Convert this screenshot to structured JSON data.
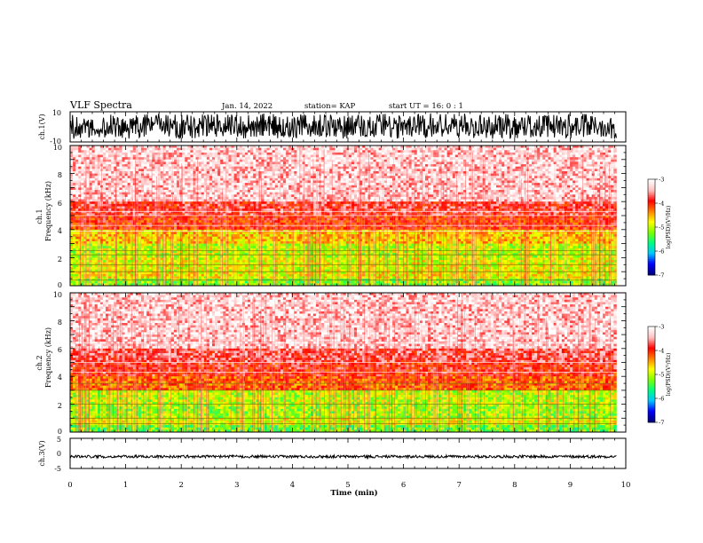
{
  "header": {
    "title": "VLF Spectra",
    "date": "Jan. 14, 2022",
    "station": "station= KAP",
    "start": "start  UT =   16: 0  : 1"
  },
  "chart_data": [
    {
      "type": "line",
      "name": "ch1-waveform",
      "ylabel": "ch.1(V)",
      "ylim": [
        -10,
        10
      ],
      "xlim": [
        0,
        10
      ],
      "yticks": [
        "10",
        "-10"
      ],
      "x": [
        0.0,
        0.5,
        1.0,
        1.5,
        2.0,
        2.5,
        3.0,
        3.5,
        4.0,
        4.5,
        5.0,
        5.5,
        6.0,
        6.5,
        7.0,
        7.5,
        8.0,
        8.5,
        9.0,
        9.5,
        9.83
      ],
      "envelope_low": [
        -8,
        -7,
        -8,
        -6,
        -8,
        -7,
        -8,
        -7,
        -8,
        -7,
        -8,
        -7,
        -8,
        -8,
        -7,
        -8,
        -8,
        -7,
        -8,
        -7,
        -8
      ],
      "envelope_high": [
        8,
        9,
        7,
        9,
        8,
        9,
        8,
        9,
        8,
        9,
        8,
        9,
        8,
        9,
        9,
        8,
        9,
        8,
        9,
        8,
        9
      ]
    },
    {
      "type": "heatmap",
      "name": "ch1-spectrogram",
      "ylabel": "ch.1",
      "ylabel2": "Frequency (kHz)",
      "ylim": [
        0,
        10
      ],
      "xlim": [
        0,
        9.83
      ],
      "yticks": [
        "0",
        "2",
        "4",
        "6",
        "8",
        "10"
      ],
      "freq_bands_khz": [
        0,
        0.5,
        1,
        2,
        3,
        4,
        5,
        6,
        10
      ],
      "log_psd_by_band": [
        -5.2,
        -4.8,
        -4.9,
        -5.0,
        -4.6,
        -4.0,
        -3.8,
        -3.3
      ],
      "lines_khz": [
        0.4,
        1.0,
        1.5,
        2.2,
        2.5,
        3.9,
        4.3,
        5.0,
        5.3
      ]
    },
    {
      "type": "heatmap",
      "name": "ch2-spectrogram",
      "ylabel": "ch.2",
      "ylabel2": "Frequency (kHz)",
      "ylim": [
        0,
        10
      ],
      "xlim": [
        0,
        9.83
      ],
      "yticks": [
        "0",
        "2",
        "4",
        "6",
        "8",
        "10"
      ],
      "freq_bands_khz": [
        0,
        0.5,
        1,
        2,
        3,
        4,
        5,
        6,
        10
      ],
      "log_psd_by_band": [
        -5.3,
        -4.9,
        -5.1,
        -5.0,
        -4.2,
        -3.9,
        -3.7,
        -3.3
      ],
      "lines_khz": [
        0.6,
        1.0,
        2.0,
        3.0,
        3.5,
        4.3,
        5.0,
        6.4
      ]
    },
    {
      "type": "line",
      "name": "ch3-waveform",
      "ylabel": "ch.3(V)",
      "ylim": [
        -5,
        5
      ],
      "xlim": [
        0,
        10
      ],
      "yticks": [
        "5",
        "0",
        "-5"
      ],
      "x": [
        0,
        9.83
      ],
      "envelope_low": [
        -1.5,
        -1.5
      ],
      "envelope_high": [
        -0.6,
        -0.6
      ]
    }
  ],
  "xaxis": {
    "label": "Time (min)",
    "ticks": [
      "0",
      "1",
      "2",
      "3",
      "4",
      "5",
      "6",
      "7",
      "8",
      "9",
      "10"
    ],
    "range": [
      0,
      10
    ]
  },
  "colorbars": [
    {
      "label": "log(PSD)(V²/Hz)",
      "ticks": [
        "-3",
        "-4",
        "-5",
        "-6",
        "-7"
      ],
      "range": [
        -7,
        -3
      ]
    },
    {
      "label": "log(PSD)(V²/Hz)",
      "ticks": [
        "-3",
        "-4",
        "-5",
        "-6",
        "-7"
      ],
      "range": [
        -7,
        -3
      ]
    }
  ],
  "colors": {
    "background": "#ffffff",
    "axis": "#000000",
    "trace": "#000000",
    "colormap": [
      "#000080",
      "#0000ff",
      "#00c8ff",
      "#00ff80",
      "#80ff00",
      "#ffff00",
      "#ff8000",
      "#ff0000",
      "#ffc0c0",
      "#ffffff"
    ]
  }
}
